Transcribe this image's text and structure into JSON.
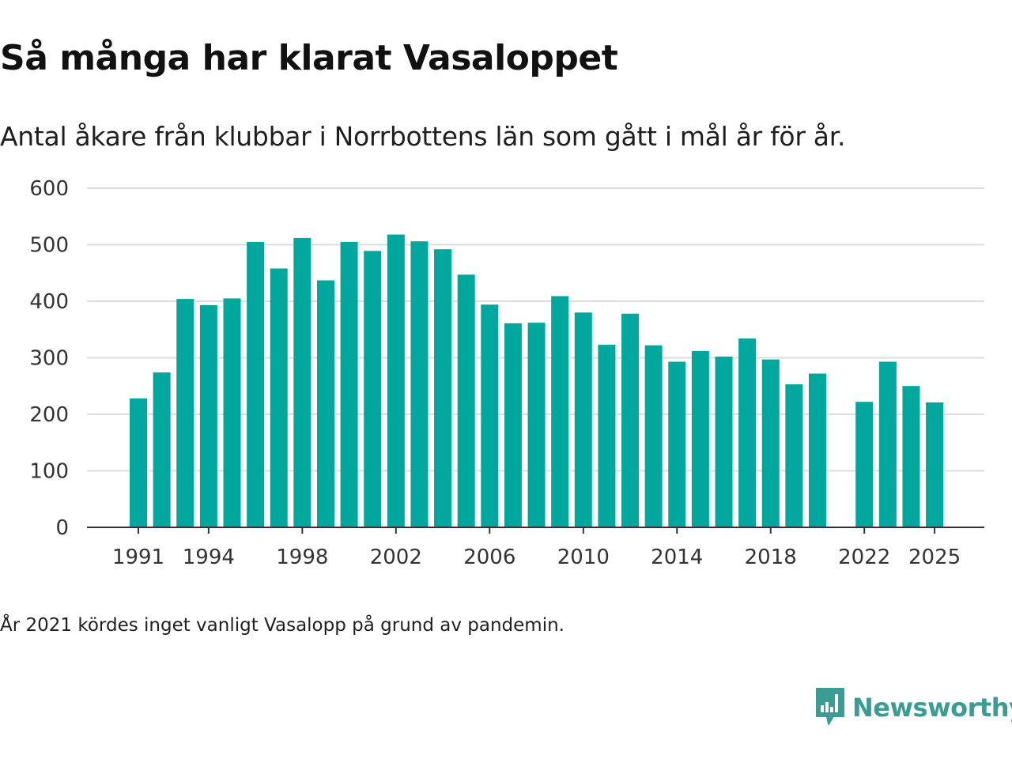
{
  "chart_data": {
    "type": "bar",
    "title": "Så många har klarat Vasaloppet",
    "subtitle": "Antal åkare från klubbar i Norrbottens län som gått i mål år för år.",
    "xlabel": "",
    "ylabel": "",
    "ylim": [
      0,
      600
    ],
    "yticks": [
      0,
      100,
      200,
      300,
      400,
      500,
      600
    ],
    "xtick_labels": [
      "1991",
      "1994",
      "1998",
      "2002",
      "2006",
      "2010",
      "2014",
      "2018",
      "2022",
      "2025"
    ],
    "categories": [
      1991,
      1992,
      1993,
      1994,
      1995,
      1996,
      1997,
      1998,
      1999,
      2000,
      2001,
      2002,
      2003,
      2004,
      2005,
      2006,
      2007,
      2008,
      2009,
      2010,
      2011,
      2012,
      2013,
      2014,
      2015,
      2016,
      2017,
      2018,
      2019,
      2020,
      2021,
      2022,
      2023,
      2024,
      2025
    ],
    "values": [
      228,
      274,
      404,
      393,
      405,
      505,
      458,
      512,
      437,
      505,
      489,
      518,
      506,
      492,
      447,
      394,
      361,
      362,
      409,
      380,
      323,
      378,
      322,
      293,
      312,
      302,
      334,
      297,
      253,
      272,
      null,
      222,
      293,
      250,
      221
    ],
    "grid": true,
    "bar_color": "#00a79d"
  },
  "note": "År 2021 kördes inget vanligt Vasalopp på grund av pandemin.",
  "brand": {
    "name": "Newsworthy",
    "icon": "newsworthy-logo-icon",
    "color": "#3a9c93"
  }
}
